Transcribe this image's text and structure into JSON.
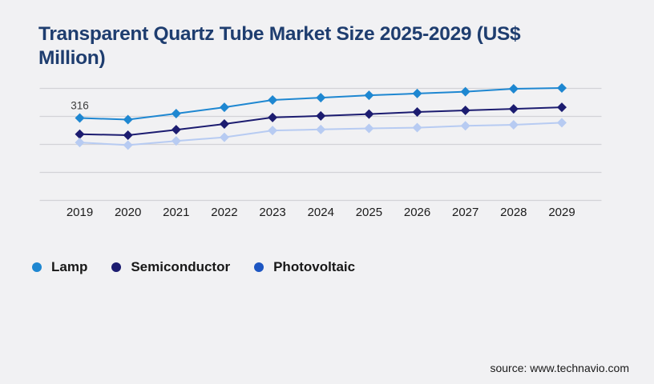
{
  "page": {
    "background_color": "#f1f1f3",
    "title": "Transparent Quartz Tube Market Size 2025-2029 (US$ Million)",
    "title_color": "#1e3d6f",
    "source_text": "source: www.technavio.com"
  },
  "chart_data": {
    "type": "line",
    "title": "Transparent Quartz Tube Market Size 2025-2029 (US$ Million)",
    "categories": [
      "2019",
      "2020",
      "2021",
      "2022",
      "2023",
      "2024",
      "2025",
      "2026",
      "2027",
      "2028",
      "2029"
    ],
    "series": [
      {
        "name": "Lamp",
        "color": "#1e87d1",
        "legend_color": "#1e87d1",
        "marker": "diamond",
        "values": [
          316,
          310,
          333,
          357,
          385,
          394,
          403,
          410,
          417,
          428,
          431
        ]
      },
      {
        "name": "Semiconductor",
        "color": "#1c1c70",
        "legend_color": "#1c1c70",
        "marker": "diamond",
        "values": [
          254,
          250,
          271,
          293,
          318,
          324,
          331,
          339,
          345,
          351,
          357
        ]
      },
      {
        "name": "Photovoltaic",
        "color": "#b7cbf2",
        "legend_color": "#1d56c2",
        "marker": "diamond",
        "values": [
          222,
          212,
          228,
          242,
          268,
          272,
          276,
          279,
          286,
          290,
          298
        ]
      }
    ],
    "data_labels": [
      {
        "series": "Lamp",
        "category": "2019",
        "text": "316"
      }
    ],
    "xlabel": "",
    "ylabel": "",
    "ylim": [
      0,
      430
    ],
    "y_axis_labels_visible": false,
    "x_axis_labels_visible": true,
    "grid": "horizontal",
    "gridline_count": 5,
    "gridline_color": "#d3d3d7",
    "data_label_color": "#3c3c3c",
    "legend_position": "bottom-left"
  }
}
